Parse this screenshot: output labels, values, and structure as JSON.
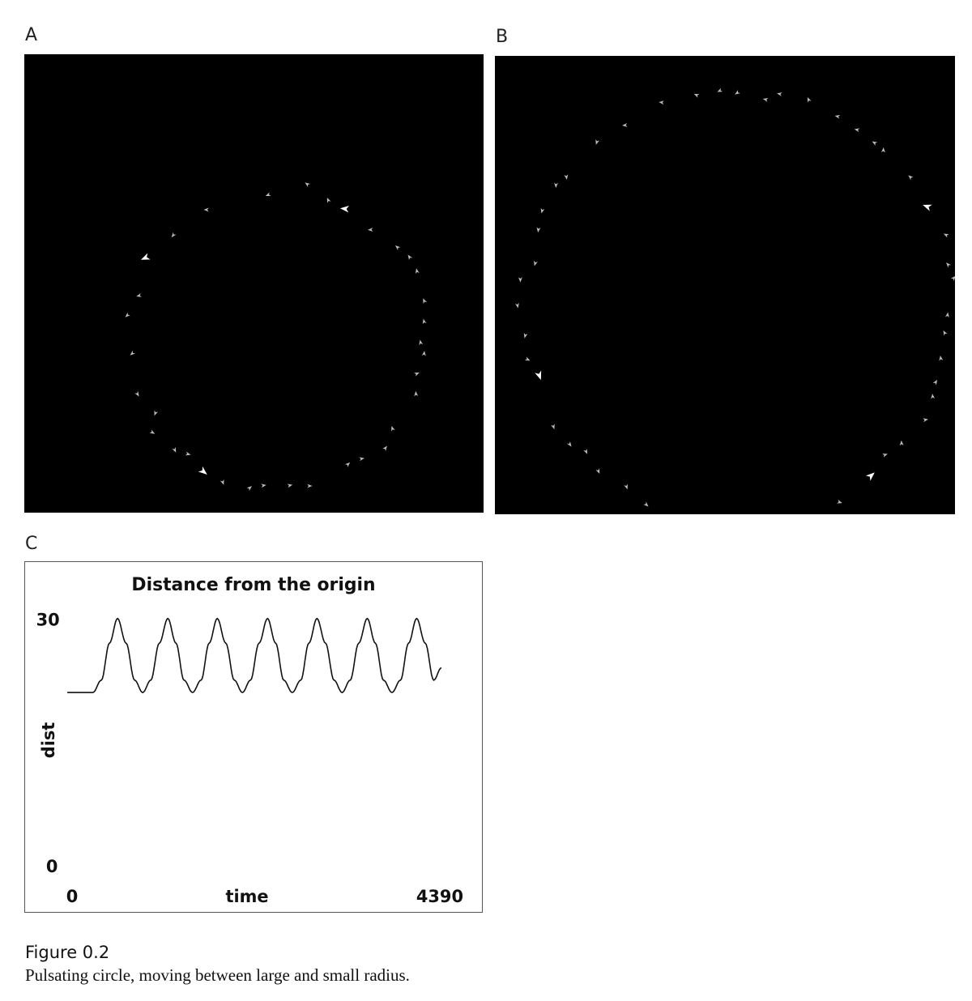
{
  "panels": {
    "a_label": "A",
    "b_label": "B",
    "c_label": "C"
  },
  "sim_a": {
    "background": "#000000",
    "turtle_color": "#bdbdbd",
    "highlight_color": "#ffffff"
  },
  "sim_b": {
    "background": "#000000",
    "turtle_color": "#bdbdbd",
    "highlight_color": "#ffffff"
  },
  "chart_data": {
    "type": "line",
    "title": "Distance from the origin",
    "xlabel": "time",
    "ylabel": "dist",
    "xlim": [
      0,
      4390
    ],
    "ylim": [
      0,
      30
    ],
    "x_ticks": [
      "0",
      "4390"
    ],
    "y_ticks": [
      "0",
      "30"
    ],
    "grid": false,
    "series": [
      {
        "x": [
          0,
          300,
          400,
          495,
          590,
          690,
          790,
          885,
          980,
          1080,
          1180,
          1275,
          1370,
          1470,
          1570,
          1665,
          1760,
          1860,
          1960,
          2055,
          2150,
          2250,
          2350,
          2445,
          2540,
          2640,
          2740,
          2835,
          2930,
          3030,
          3130,
          3225,
          3320,
          3420,
          3520,
          3615,
          3710,
          3810,
          3910,
          4005,
          4100,
          4200,
          4300,
          4390
        ],
        "values": [
          21,
          21,
          22.5,
          27,
          30,
          27,
          22.5,
          21,
          22.5,
          27,
          30,
          27,
          22.5,
          21,
          22.5,
          27,
          30,
          27,
          22.5,
          21,
          22.5,
          27,
          30,
          27,
          22.5,
          21,
          22.5,
          27,
          30,
          27,
          22.5,
          21,
          22.5,
          27,
          30,
          27,
          22.5,
          21,
          22.5,
          27,
          30,
          27,
          22.5,
          24
        ]
      }
    ]
  },
  "caption": {
    "title": "Figure 0.2",
    "text": "Pulsating circle, moving between large and small radius."
  }
}
